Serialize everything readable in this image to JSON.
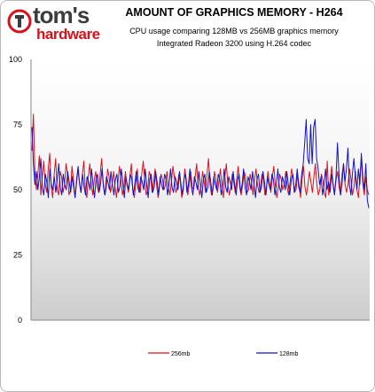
{
  "header": {
    "logo_main": "tom's",
    "logo_sub": "hardware",
    "title": "AMOUNT OF GRAPHICS MEMORY - H264",
    "subtitle_line1": "CPU usage comparing 128MB vs 256MB graphics memory",
    "subtitle_line2": "Integrated Radeon 3200 using H.264 codec"
  },
  "colors": {
    "series_256": "#d8121b",
    "series_128": "#1212c8",
    "plot_top": "#ffffff",
    "plot_bottom": "#cfcfcf"
  },
  "chart_data": {
    "type": "line",
    "title": "AMOUNT OF GRAPHICS MEMORY - H264",
    "subtitle": "CPU usage comparing 128MB vs 256MB graphics memory / Integrated Radeon 3200 using H.264 codec",
    "xlabel": "",
    "ylabel": "",
    "ylim": [
      0,
      100
    ],
    "yticks": [
      0,
      25,
      50,
      75,
      100
    ],
    "grid": false,
    "legend_position": "bottom",
    "series": [
      {
        "name": "256mb",
        "color": "#d8121b",
        "values": [
          65,
          79,
          57,
          50,
          56,
          63,
          48,
          55,
          61,
          52,
          49,
          58,
          64,
          51,
          47,
          56,
          62,
          50,
          48,
          57,
          55,
          49,
          52,
          60,
          56,
          48,
          50,
          59,
          54,
          47,
          52,
          58,
          53,
          49,
          56,
          61,
          50,
          47,
          55,
          60,
          52,
          48,
          54,
          57,
          51,
          49,
          56,
          62,
          53,
          48,
          50,
          58,
          55,
          49,
          52,
          57,
          51,
          47,
          53,
          59,
          54,
          48,
          51,
          57,
          52,
          49,
          55,
          60,
          50,
          47,
          53,
          58,
          51,
          49,
          56,
          61,
          54,
          48,
          50,
          57,
          55,
          49,
          53,
          58,
          52,
          47,
          51,
          56,
          54,
          50,
          52,
          57,
          51,
          48,
          53,
          59,
          55,
          49,
          51,
          56,
          53,
          47,
          50,
          58,
          54,
          48,
          52,
          57,
          51,
          50,
          55,
          60,
          52,
          48,
          51,
          57,
          53,
          49,
          56,
          62,
          52,
          48,
          50,
          57,
          54,
          49,
          53,
          58,
          51,
          47,
          55,
          60,
          52,
          48,
          51,
          56,
          53,
          49,
          54,
          59,
          51,
          48,
          52,
          57,
          55,
          49,
          50,
          56,
          53,
          48,
          54,
          58,
          52,
          49,
          51,
          56,
          54,
          48,
          50,
          57,
          53,
          49,
          55,
          59,
          52,
          47,
          51,
          56,
          54,
          50,
          52,
          57,
          51,
          48,
          53,
          58,
          55,
          49,
          50,
          56,
          52,
          47,
          54,
          59,
          51,
          48,
          52,
          57,
          53,
          49,
          55,
          60,
          52,
          48,
          50,
          56,
          54,
          49,
          47,
          61,
          48,
          53,
          59,
          52,
          49,
          54,
          57,
          51,
          48,
          56,
          60,
          52,
          49,
          52,
          58,
          54,
          48,
          51,
          57,
          50,
          47,
          55,
          62,
          52,
          48,
          55,
          50,
          48
        ],
        "note": ""
      },
      {
        "name": "128mb",
        "color": "#1212c8",
        "values": [
          74,
          60,
          52,
          57,
          50,
          55,
          62,
          51,
          48,
          56,
          53,
          47,
          58,
          52,
          50,
          55,
          49,
          54,
          60,
          51,
          48,
          56,
          52,
          50,
          57,
          53,
          49,
          55,
          51,
          47,
          54,
          59,
          52,
          49,
          56,
          51,
          48,
          55,
          53,
          50,
          58,
          52,
          47,
          54,
          56,
          49,
          52,
          58,
          51,
          48,
          55,
          53,
          50,
          57,
          52,
          48,
          54,
          56,
          49,
          51,
          58,
          53,
          47,
          55,
          52,
          50,
          56,
          54,
          48,
          52,
          57,
          51,
          49,
          55,
          53,
          50,
          58,
          52,
          47,
          54,
          56,
          49,
          51,
          57,
          53,
          48,
          55,
          52,
          50,
          56,
          54,
          48,
          52,
          58,
          51,
          49,
          55,
          53,
          50,
          57,
          52,
          48,
          54,
          56,
          49,
          52,
          58,
          51,
          48,
          55,
          53,
          50,
          57,
          52,
          47,
          54,
          56,
          49,
          51,
          57,
          53,
          48,
          55,
          52,
          50,
          56,
          54,
          48,
          52,
          58,
          51,
          49,
          55,
          53,
          50,
          57,
          52,
          48,
          54,
          56,
          49,
          52,
          58,
          51,
          48,
          55,
          53,
          50,
          57,
          52,
          47,
          54,
          56,
          49,
          51,
          57,
          53,
          48,
          55,
          52,
          50,
          56,
          54,
          48,
          52,
          58,
          51,
          49,
          55,
          53,
          50,
          57,
          52,
          48,
          54,
          56,
          49,
          52,
          58,
          51,
          49,
          56,
          60,
          68,
          77,
          62,
          60,
          75,
          60,
          74,
          77,
          62,
          58,
          52,
          55,
          48,
          52,
          58,
          50,
          53,
          49,
          56,
          52,
          48,
          55,
          68,
          56,
          48,
          52,
          60,
          53,
          58,
          66,
          52,
          48,
          56,
          62,
          55,
          50,
          58,
          52,
          64,
          55,
          50,
          60,
          46,
          43
        ]
      }
    ]
  },
  "legend": {
    "item1": "256mb",
    "item2": "128mb"
  }
}
